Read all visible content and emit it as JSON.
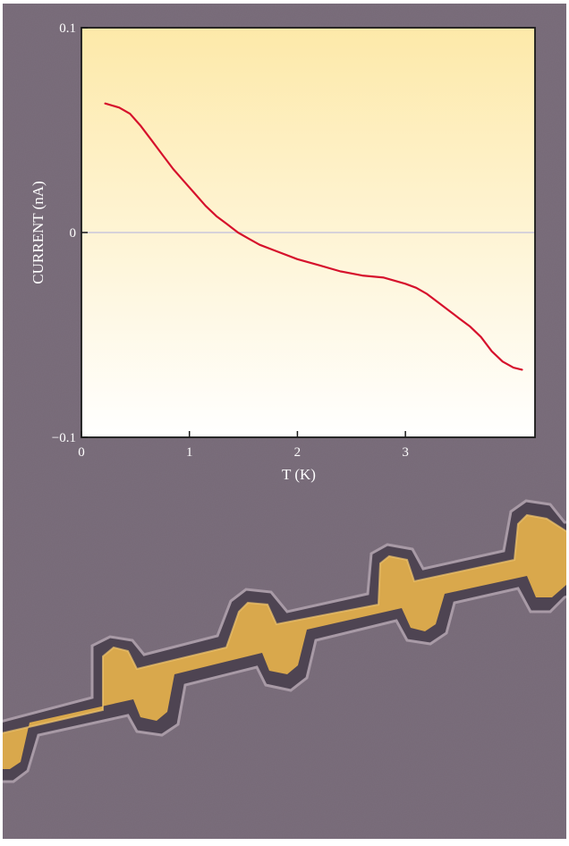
{
  "chart_data": {
    "type": "line",
    "xlabel": "T (K)",
    "ylabel": "CURRENT (nA)",
    "xlim": [
      0,
      4.2
    ],
    "ylim": [
      -0.1,
      0.1
    ],
    "x_ticks": [
      0,
      1,
      2,
      3
    ],
    "y_ticks": [
      {
        "value": -0.1,
        "label": "−0.1"
      },
      {
        "value": 0,
        "label": "0"
      },
      {
        "value": 0.1,
        "label": "0.1"
      }
    ],
    "reference_line": {
      "y": 0,
      "color": "#c8c6dc"
    },
    "grid": false,
    "series": [
      {
        "color": "#d6112c",
        "x": [
          0.22,
          0.35,
          0.45,
          0.55,
          0.65,
          0.75,
          0.85,
          0.95,
          1.05,
          1.15,
          1.25,
          1.35,
          1.45,
          1.55,
          1.65,
          1.8,
          2.0,
          2.2,
          2.4,
          2.6,
          2.8,
          3.0,
          3.1,
          3.2,
          3.3,
          3.4,
          3.5,
          3.6,
          3.7,
          3.8,
          3.9,
          4.0,
          4.08
        ],
        "y": [
          0.063,
          0.061,
          0.058,
          0.052,
          0.045,
          0.038,
          0.031,
          0.025,
          0.019,
          0.013,
          0.008,
          0.004,
          0.0,
          -0.003,
          -0.006,
          -0.009,
          -0.013,
          -0.016,
          -0.019,
          -0.021,
          -0.022,
          -0.025,
          -0.027,
          -0.03,
          -0.034,
          -0.038,
          -0.042,
          -0.046,
          -0.051,
          -0.058,
          -0.063,
          -0.066,
          -0.067
        ]
      }
    ],
    "background_gradient": [
      "#fde9a9",
      "#ffffff"
    ]
  }
}
